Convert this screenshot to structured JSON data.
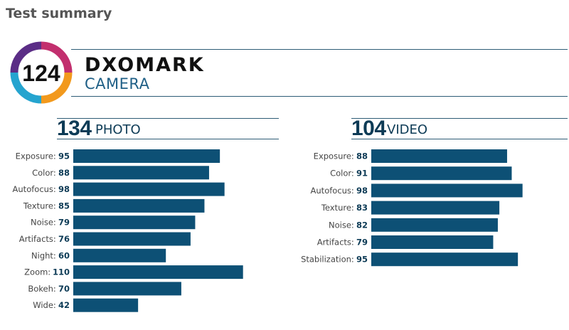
{
  "page": {
    "heading": "Test summary",
    "brand": "DXOMARK",
    "product": "CAMERA",
    "overall_score": "124"
  },
  "colors": {
    "bar": "#0d5075",
    "text_dark": "#0d3b56",
    "logo_ring": [
      "#5b2d86",
      "#c22f6e",
      "#f2991d",
      "#25a4cf"
    ]
  },
  "chart_data": [
    {
      "type": "bar",
      "orientation": "horizontal",
      "title": "PHOTO",
      "score": "134",
      "categories": [
        "Exposure:",
        "Color:",
        "Autofocus:",
        "Texture:",
        "Noise:",
        "Artifacts:",
        "Night:",
        "Zoom:",
        "Bokeh:",
        "Wide:"
      ],
      "values": [
        95,
        88,
        98,
        85,
        79,
        76,
        60,
        110,
        70,
        42
      ]
    },
    {
      "type": "bar",
      "orientation": "horizontal",
      "title": "VIDEO",
      "score": "104",
      "categories": [
        "Exposure:",
        "Color:",
        "Autofocus:",
        "Texture:",
        "Noise:",
        "Artifacts:",
        "Stabilization:"
      ],
      "values": [
        88,
        91,
        98,
        83,
        82,
        79,
        95
      ]
    }
  ]
}
